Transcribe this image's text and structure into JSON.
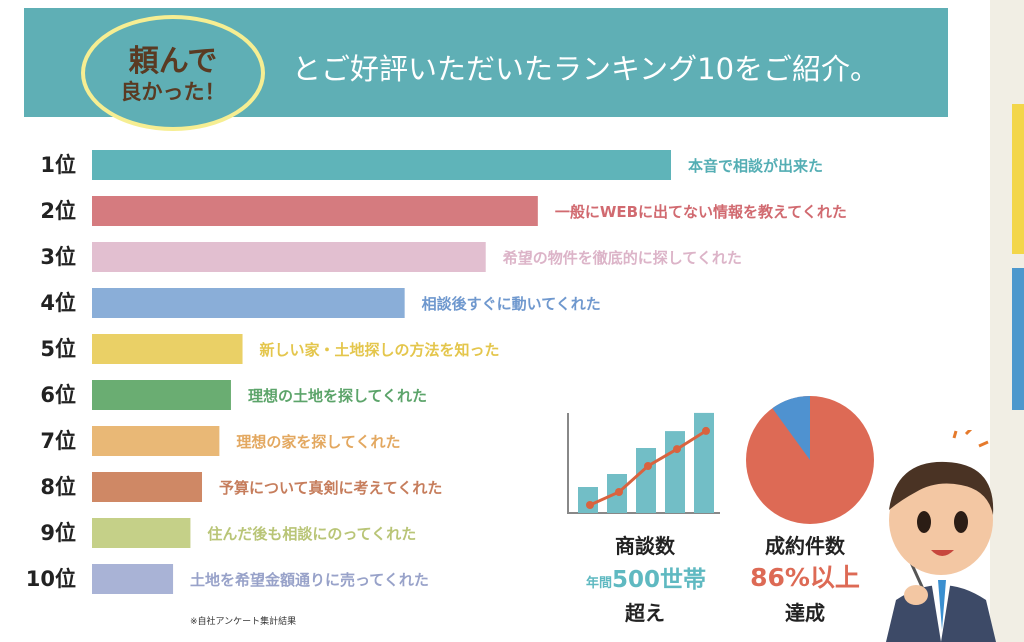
{
  "header": {
    "badge_line1": "頼んで",
    "badge_line2": "良かった！",
    "title": "とご好評いただいたランキング10をご紹介。"
  },
  "chart_data": {
    "type": "bar",
    "orientation": "horizontal",
    "categories": [
      "1位",
      "2位",
      "3位",
      "4位",
      "5位",
      "6位",
      "7位",
      "8位",
      "9位",
      "10位"
    ],
    "labels": [
      "本音で相談が出来た",
      "一般にWEBに出てない情報を教えてくれた",
      "希望の物件を徹底的に探してくれた",
      "相談後すぐに動いてくれた",
      "新しい家・土地探しの方法を知った",
      "理想の土地を探してくれた",
      "理想の家を探してくれた",
      "予算について真剣に考えてくれた",
      "住んだ後も相談にのってくれた",
      "土地を希望金額通りに売ってくれた"
    ],
    "values": [
      100,
      77,
      68,
      54,
      26,
      24,
      22,
      19,
      17,
      14
    ],
    "colors": [
      "#5fb4b9",
      "#d57b7f",
      "#e2bfd0",
      "#8aaed8",
      "#ead066",
      "#6aad72",
      "#e9b876",
      "#cf8865",
      "#c5d088",
      "#a9b3d6"
    ],
    "label_colors": [
      "#54aeb4",
      "#d16a70",
      "#dcb4c8",
      "#6f98ce",
      "#e4c64c",
      "#5ca46a",
      "#e3a860",
      "#c67d5c",
      "#b9c577",
      "#98a2c9"
    ]
  },
  "footnote": "※自社アンケート集計結果",
  "stats": {
    "meetings_title": "商談数",
    "meetings_prefix": "年間",
    "meetings_value": "500世帯",
    "meetings_suffix": "超え",
    "contracts_title": "成約件数",
    "contracts_value": "86%以上",
    "contracts_suffix": "達成",
    "growth_bars": [
      0.2,
      0.3,
      0.5,
      0.63,
      0.77
    ],
    "contract_rate": 0.9,
    "colors": {
      "teal": "#72bec6",
      "orange": "#d9633f",
      "pie_red": "#dd6a55",
      "pie_blue": "#4f92d0"
    }
  }
}
